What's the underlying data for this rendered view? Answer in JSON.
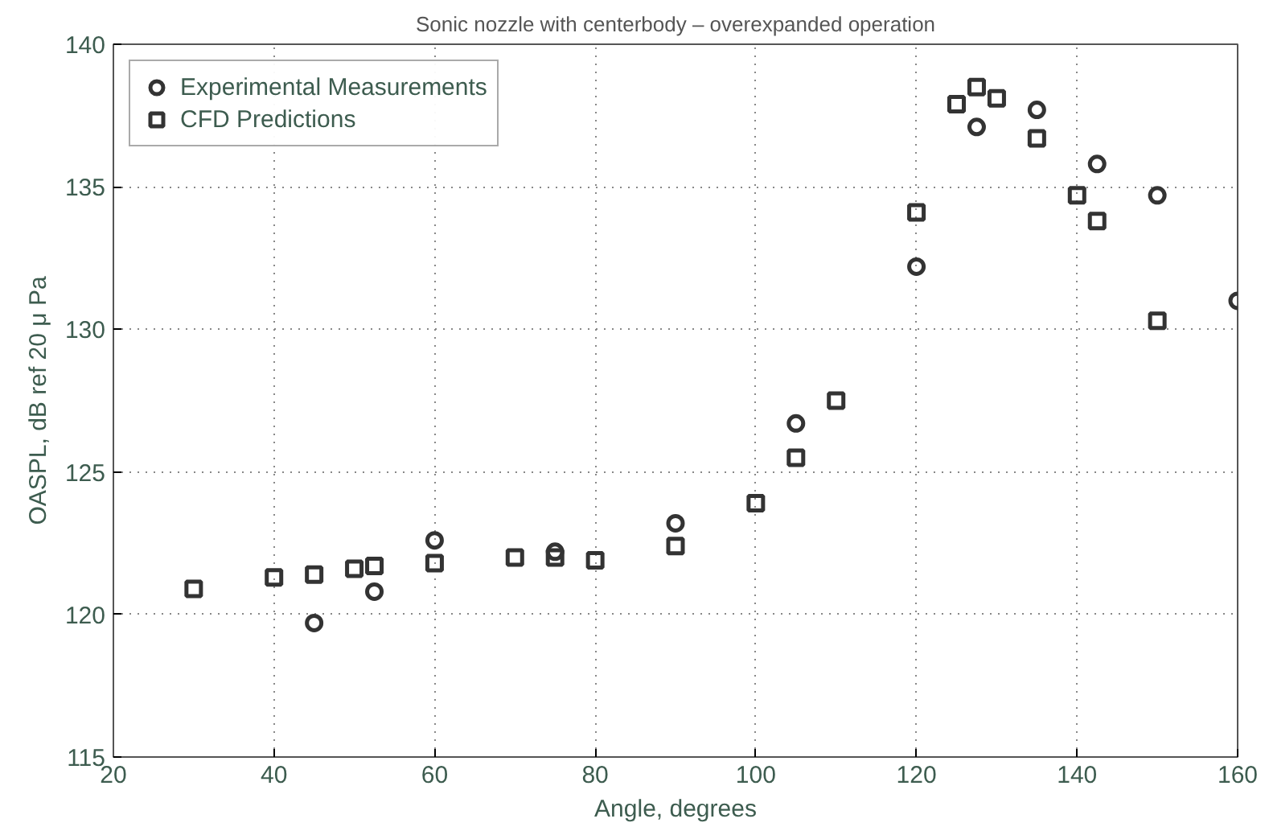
{
  "chart_data": {
    "type": "scatter",
    "title": "Sonic nozzle with centerbody – overexpanded operation",
    "xlabel": "Angle, degrees",
    "ylabel": "OASPL, dB ref 20 μ Pa",
    "xlim": [
      20,
      160
    ],
    "xticks": [
      20,
      40,
      60,
      80,
      100,
      120,
      140,
      160
    ],
    "ylim": [
      115,
      140
    ],
    "yticks": [
      115,
      120,
      125,
      130,
      135,
      140
    ],
    "grid": true,
    "legend": "top left",
    "series": [
      {
        "name": "Experimental Measurements",
        "color": "#333333",
        "marker": "circle",
        "x": [
          45,
          52.5,
          60,
          75,
          90,
          105,
          120,
          127.5,
          135,
          142.5,
          150,
          160
        ],
        "values": [
          119.7,
          120.8,
          122.6,
          122.2,
          123.2,
          126.7,
          132.2,
          137.1,
          137.7,
          135.8,
          134.7,
          131.0
        ]
      },
      {
        "name": "CFD Predictions",
        "color": "#333333",
        "marker": "square",
        "x": [
          30,
          40,
          45,
          50,
          52.5,
          60,
          70,
          75,
          80,
          90,
          100,
          105,
          110,
          120,
          125,
          127.5,
          130,
          135,
          140,
          142.5,
          150
        ],
        "values": [
          120.9,
          121.3,
          121.4,
          121.6,
          121.7,
          121.8,
          122.0,
          122.0,
          121.9,
          122.4,
          123.9,
          125.5,
          127.5,
          134.1,
          137.9,
          138.5,
          138.1,
          136.7,
          134.7,
          133.8,
          130.3
        ]
      }
    ]
  }
}
